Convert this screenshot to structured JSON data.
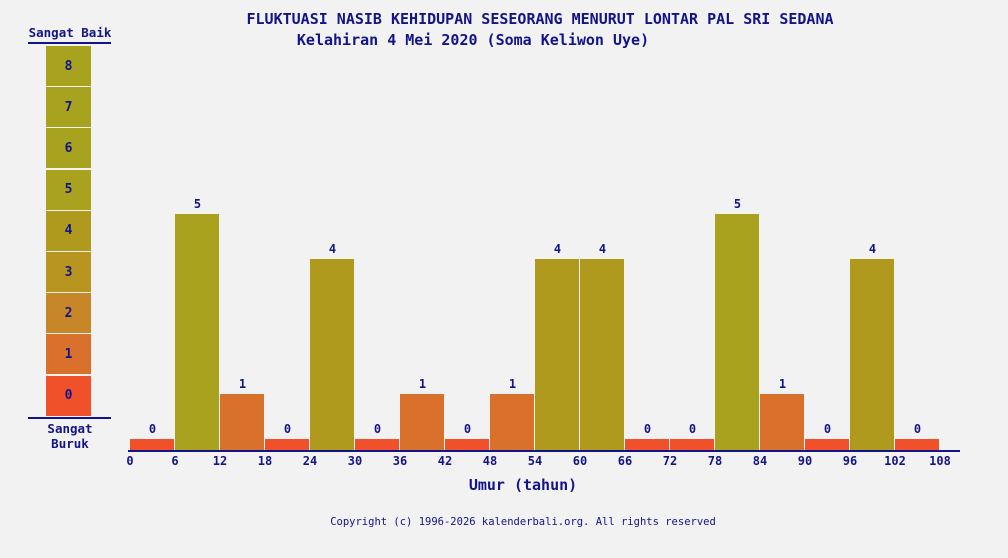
{
  "page": {
    "background": "#f2f2f2",
    "text_color": "#13138a"
  },
  "header": {
    "title": "FLUKTUASI NASIB KEHIDUPAN SESEORANG MENURUT LONTAR PAL SRI SEDANA",
    "subtitle": "Kelahiran 4 Mei 2020 (Soma Keliwon Uye)"
  },
  "legend": {
    "top_label": "Sangat Baik",
    "bottom_label": "Sangat Buruk",
    "scale": [
      {
        "value": 8,
        "color": "#a7a31e"
      },
      {
        "value": 7,
        "color": "#a7a31e"
      },
      {
        "value": 6,
        "color": "#a7a31e"
      },
      {
        "value": 5,
        "color": "#a8a21f"
      },
      {
        "value": 4,
        "color": "#af9a1e"
      },
      {
        "value": 3,
        "color": "#b89420"
      },
      {
        "value": 2,
        "color": "#c78729"
      },
      {
        "value": 1,
        "color": "#d9702b"
      },
      {
        "value": 0,
        "color": "#f0512b"
      }
    ]
  },
  "chart_data": {
    "type": "bar",
    "title": "FLUKTUASI NASIB KEHIDUPAN SESEORANG MENURUT LONTAR PAL SRI SEDANA",
    "subtitle": "Kelahiran 4 Mei 2020 (Soma Keliwon Uye)",
    "xlabel": "Umur (tahun)",
    "ylabel": "",
    "ylim": [
      0,
      8
    ],
    "scale_top_label": "Sangat Baik",
    "scale_bottom_label": "Sangat Buruk",
    "bin_width_years": 6,
    "x_bins": [
      0,
      6,
      12,
      18,
      24,
      30,
      36,
      42,
      48,
      54,
      60,
      66,
      72,
      78,
      84,
      90,
      96,
      102
    ],
    "values": [
      0,
      5,
      1,
      0,
      4,
      0,
      1,
      0,
      1,
      4,
      4,
      0,
      0,
      5,
      1,
      0,
      4,
      0
    ],
    "x_ticks": [
      0,
      6,
      12,
      18,
      24,
      30,
      36,
      42,
      48,
      54,
      60,
      66,
      72,
      78,
      84,
      90,
      96,
      102,
      108
    ],
    "grid": false,
    "legend_position": "left",
    "value_colors": {
      "0": "#f0512b",
      "1": "#d9702b",
      "2": "#c78729",
      "3": "#b89420",
      "4": "#af9a1e",
      "5": "#a8a21f",
      "6": "#a7a31e",
      "7": "#a7a31e",
      "8": "#a7a31e"
    }
  },
  "footer": {
    "copyright": "Copyright (c) 1996-2026 kalenderbali.org. All rights reserved"
  }
}
